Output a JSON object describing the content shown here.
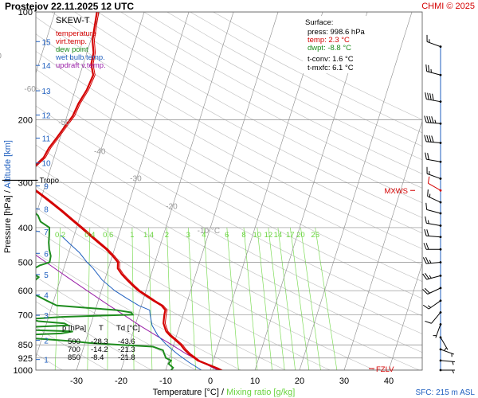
{
  "header": {
    "title": "Prostejov    22.11.2025 12 UTC",
    "credit": "CHMI © 2025"
  },
  "colors": {
    "temperature": "#d40000",
    "virt_temp": "#d40000",
    "dew_point": "#1e8c1e",
    "wet_bulb": "#1f5fbf",
    "updraft": "#9a1fa8",
    "isotherm": "#8a8a8a",
    "isobar": "#8a8a8a",
    "dry_adiabat": "#bdbdbd",
    "mixing_ratio": "#7fdc5a",
    "altitude": "#1f5fbf",
    "wind": "#000000",
    "wind_alert": "#d40000",
    "legend_bw": "#1f5fbf",
    "legend_uv": "#9a1fa8"
  },
  "chart_data": {
    "type": "skew-t",
    "title": "SKEW-T",
    "xlabel": "Temperature [°C]",
    "xlabel_sep": "/",
    "xlabel2": "Mixing ratio [g/kg]",
    "ylabel": "Pressure [hPa]",
    "ylabel_sep": "/",
    "ylabel2": "Altitude [km]",
    "xlim": [
      -35,
      45
    ],
    "pressure_ticks": [
      100,
      200,
      300,
      400,
      500,
      600,
      700,
      850,
      925,
      1000
    ],
    "temperature_ticks": [
      -30,
      -20,
      -10,
      0,
      10,
      20,
      30,
      40
    ],
    "altitude_ticks": [
      {
        "label": "1",
        "p": 934
      },
      {
        "label": "2",
        "p": 825
      },
      {
        "label": "3",
        "p": 703
      },
      {
        "label": "4",
        "p": 617
      },
      {
        "label": "5",
        "p": 541
      },
      {
        "label": "6",
        "p": 472
      },
      {
        "label": "7",
        "p": 410
      },
      {
        "label": "8",
        "p": 355
      },
      {
        "label": "9",
        "p": 306
      },
      {
        "label": "10",
        "p": 264
      },
      {
        "label": "11",
        "p": 225
      },
      {
        "label": "12",
        "p": 194
      },
      {
        "label": "13",
        "p": 166
      },
      {
        "label": "14",
        "p": 141
      },
      {
        "label": "15",
        "p": 121
      }
    ],
    "isotherm_labels": [
      {
        "label": "-80 °C",
        "t": -80,
        "p": 110
      },
      {
        "label": "-70",
        "t": -70,
        "p": 135
      },
      {
        "label": "-60",
        "t": -60,
        "p": 167
      },
      {
        "label": "-50",
        "t": -50,
        "p": 207
      },
      {
        "label": "-40",
        "t": -40,
        "p": 249
      },
      {
        "label": "-30",
        "t": -30,
        "p": 297
      },
      {
        "label": "-20",
        "t": -20,
        "p": 355
      },
      {
        "label": "-10 °C",
        "t": -10,
        "p": 415
      }
    ],
    "mixing_ratio_lines": [
      "0.2",
      "0.4",
      "0.6",
      "1",
      "1.4",
      "2",
      "3",
      "4",
      "6",
      "8",
      "10",
      "12",
      "14",
      "17",
      "20",
      "25"
    ],
    "legend": [
      {
        "name": "temperature",
        "color": "#d40000"
      },
      {
        "name": "virt.temp.",
        "color": "#d40000"
      },
      {
        "name": "dew point",
        "color": "#1e8c1e"
      },
      {
        "name": "wet bulb temp.",
        "color": "#1f5fbf"
      },
      {
        "name": "updraft v.temp.",
        "color": "#9a1fa8"
      }
    ],
    "temperature_profile": [
      [
        1000,
        2.3
      ],
      [
        985,
        1.0
      ],
      [
        960,
        -1.5
      ],
      [
        940,
        -3.5
      ],
      [
        925,
        -4.4
      ],
      [
        900,
        -6.0
      ],
      [
        875,
        -7.3
      ],
      [
        850,
        -8.4
      ],
      [
        820,
        -10.2
      ],
      [
        800,
        -11.5
      ],
      [
        780,
        -12.6
      ],
      [
        760,
        -13.2
      ],
      [
        740,
        -13.8
      ],
      [
        720,
        -14.0
      ],
      [
        700,
        -14.2
      ],
      [
        680,
        -14.3
      ],
      [
        660,
        -15.5
      ],
      [
        640,
        -17.6
      ],
      [
        620,
        -19.6
      ],
      [
        600,
        -21.7
      ],
      [
        580,
        -23.4
      ],
      [
        560,
        -25.0
      ],
      [
        540,
        -26.6
      ],
      [
        520,
        -27.9
      ],
      [
        500,
        -28.3
      ],
      [
        480,
        -29.9
      ],
      [
        460,
        -31.8
      ],
      [
        440,
        -34.1
      ],
      [
        420,
        -36.5
      ],
      [
        400,
        -39.0
      ],
      [
        380,
        -41.7
      ],
      [
        360,
        -44.5
      ],
      [
        340,
        -47.6
      ],
      [
        320,
        -51.0
      ],
      [
        300,
        -54.8
      ],
      [
        295,
        -55.6
      ],
      [
        285,
        -55.3
      ],
      [
        270,
        -53.8
      ],
      [
        255,
        -52.3
      ],
      [
        240,
        -51.8
      ],
      [
        225,
        -50.8
      ],
      [
        210,
        -49.8
      ],
      [
        195,
        -48.7
      ],
      [
        180,
        -48.3
      ],
      [
        165,
        -47.4
      ],
      [
        150,
        -47.0
      ],
      [
        140,
        -48.2
      ],
      [
        130,
        -48.5
      ],
      [
        120,
        -49.6
      ],
      [
        110,
        -50.1
      ],
      [
        100,
        -50.6
      ]
    ],
    "dewpoint_profile": [
      [
        1000,
        -8.8
      ],
      [
        985,
        -8.5
      ],
      [
        960,
        -9.8
      ],
      [
        940,
        -9.5
      ],
      [
        925,
        -10.8
      ],
      [
        900,
        -11.5
      ],
      [
        880,
        -12.0
      ],
      [
        860,
        -14.5
      ],
      [
        850,
        -21.8
      ],
      [
        840,
        -29.0
      ],
      [
        830,
        -33.0
      ],
      [
        815,
        -42.0
      ],
      [
        800,
        -47.0
      ],
      [
        790,
        -36.0
      ],
      [
        780,
        -33.5
      ],
      [
        770,
        -46.0
      ],
      [
        760,
        -46.0
      ],
      [
        750,
        -35.0
      ],
      [
        740,
        -36.0
      ],
      [
        730,
        -42.0
      ],
      [
        720,
        -44.0
      ],
      [
        710,
        -37.0
      ],
      [
        700,
        -21.3
      ],
      [
        690,
        -21.8
      ],
      [
        680,
        -25.2
      ],
      [
        670,
        -32.0
      ],
      [
        660,
        -39.0
      ],
      [
        640,
        -41.5
      ],
      [
        620,
        -44.0
      ],
      [
        605,
        -46.2
      ],
      [
        600,
        -51.0
      ],
      [
        590,
        -47.0
      ],
      [
        570,
        -46.0
      ],
      [
        550,
        -45.0
      ],
      [
        530,
        -47.5
      ],
      [
        510,
        -45.6
      ],
      [
        500,
        -43.6
      ],
      [
        480,
        -43.8
      ],
      [
        460,
        -44.6
      ],
      [
        440,
        -45.2
      ],
      [
        420,
        -45.6
      ],
      [
        400,
        -46.1
      ],
      [
        385,
        -48.5
      ],
      [
        370,
        -49.5
      ],
      [
        355,
        -51.5
      ],
      [
        340,
        -54.0
      ],
      [
        325,
        -57.0
      ],
      [
        310,
        -58.5
      ],
      [
        300,
        -60.2
      ],
      [
        290,
        -62.0
      ],
      [
        280,
        -64.5
      ],
      [
        270,
        -66.5
      ],
      [
        260,
        -68.0
      ],
      [
        245,
        -70.0
      ],
      [
        230,
        -71.5
      ],
      [
        215,
        -73.5
      ],
      [
        200,
        -75.5
      ],
      [
        185,
        -77.5
      ],
      [
        170,
        -80.0
      ],
      [
        155,
        -81.5
      ],
      [
        140,
        -83.8
      ],
      [
        125,
        -86.0
      ],
      [
        110,
        -88.3
      ],
      [
        100,
        -90.0
      ]
    ],
    "wetbulb_profile": [
      [
        1000,
        -2.0
      ],
      [
        950,
        -5.4
      ],
      [
        900,
        -8.6
      ],
      [
        850,
        -11.6
      ],
      [
        800,
        -14.2
      ],
      [
        750,
        -16.2
      ],
      [
        700,
        -17.4
      ],
      [
        680,
        -17.8
      ],
      [
        660,
        -20.6
      ],
      [
        630,
        -23.8
      ],
      [
        600,
        -27.0
      ],
      [
        560,
        -30.6
      ],
      [
        520,
        -33.4
      ],
      [
        500,
        -35.2
      ],
      [
        470,
        -37.6
      ],
      [
        440,
        -40.8
      ],
      [
        420,
        -43.0
      ]
    ],
    "updraft_profile": [
      [
        1000,
        1.6
      ],
      [
        950,
        -2.4
      ],
      [
        900,
        -6.6
      ],
      [
        850,
        -10.4
      ],
      [
        800,
        -14.6
      ],
      [
        750,
        -19.0
      ],
      [
        700,
        -23.4
      ],
      [
        650,
        -28.2
      ],
      [
        600,
        -33.2
      ],
      [
        550,
        -38.6
      ],
      [
        500,
        -44.4
      ],
      [
        450,
        -50.8
      ],
      [
        400,
        -57.6
      ],
      [
        350,
        -65.0
      ],
      [
        300,
        -73.0
      ],
      [
        250,
        -82.0
      ],
      [
        200,
        -92.0
      ],
      [
        160,
        -100.0
      ],
      [
        130,
        -108.0
      ]
    ],
    "tropopause": {
      "label": "Tropo",
      "p": 295
    },
    "mxws": {
      "label": "MXWS",
      "p": 315
    },
    "fzlv": {
      "label": "FZLV",
      "p": 990
    },
    "surface": {
      "title": "Surface:",
      "press": "press: 998.6 hPa",
      "temp": "temp: 2.3 °C",
      "dwpt": "dwpt: -8.8 °C",
      "tconv": "t-conv: 1.6 °C",
      "tmxfc": "t-mxfc: 6.1 °C"
    },
    "table": {
      "headers": [
        "p [hPa]",
        "T",
        "Td [°C]"
      ],
      "rows": [
        [
          "500",
          "-28.3",
          "-43.6"
        ],
        [
          "700",
          "-14.2",
          "-21.3"
        ],
        [
          "850",
          "-8.4",
          "-21.8"
        ]
      ]
    },
    "wind_barbs": [
      {
        "p": 125,
        "dir": 290,
        "speed": 15
      },
      {
        "p": 150,
        "dir": 285,
        "speed": 25
      },
      {
        "p": 178,
        "dir": 280,
        "speed": 40
      },
      {
        "p": 205,
        "dir": 275,
        "speed": 45
      },
      {
        "p": 232,
        "dir": 275,
        "speed": 40
      },
      {
        "p": 262,
        "dir": 280,
        "speed": 20
      },
      {
        "p": 292,
        "dir": 290,
        "speed": 15
      },
      {
        "p": 315,
        "dir": 300,
        "speed": 10
      },
      {
        "p": 340,
        "dir": 295,
        "speed": 15
      },
      {
        "p": 365,
        "dir": 285,
        "speed": 10
      },
      {
        "p": 395,
        "dir": 280,
        "speed": 15
      },
      {
        "p": 425,
        "dir": 275,
        "speed": 20
      },
      {
        "p": 460,
        "dir": 270,
        "speed": 20
      },
      {
        "p": 500,
        "dir": 265,
        "speed": 25
      },
      {
        "p": 545,
        "dir": 255,
        "speed": 25
      },
      {
        "p": 590,
        "dir": 245,
        "speed": 20
      },
      {
        "p": 640,
        "dir": 235,
        "speed": 15
      },
      {
        "p": 690,
        "dir": 220,
        "speed": 10
      },
      {
        "p": 745,
        "dir": 200,
        "speed": 5
      },
      {
        "p": 810,
        "dir": 150,
        "speed": 5
      },
      {
        "p": 875,
        "dir": 110,
        "speed": 5
      },
      {
        "p": 940,
        "dir": 95,
        "speed": 5
      },
      {
        "p": 1000,
        "dir": 90,
        "speed": 5
      }
    ],
    "sfc_label": "SFC: 215 m ASL"
  }
}
